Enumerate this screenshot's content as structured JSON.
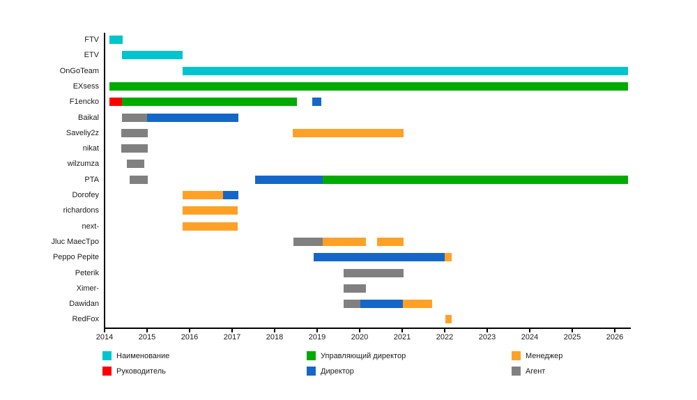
{
  "chart_data": {
    "type": "gantt",
    "title": "",
    "x_axis": {
      "min": 2014,
      "max": 2026.4,
      "ticks": [
        2014,
        2015,
        2016,
        2017,
        2018,
        2019,
        2020,
        2021,
        2022,
        2023,
        2024,
        2025,
        2026
      ]
    },
    "colors": {
      "name": "#00C5CD",
      "head": "#FF0000",
      "md": "#00AB00",
      "dir": "#1467C8",
      "manager": "#FFA126",
      "agent": "#808080"
    },
    "tasks": [
      {
        "name": "FTV",
        "segments": [
          {
            "role": "name",
            "start": 2014.11,
            "end": 2014.43
          }
        ]
      },
      {
        "name": "ETV",
        "segments": [
          {
            "role": "name",
            "start": 2014.41,
            "end": 2015.84
          }
        ]
      },
      {
        "name": "OnGoTeam",
        "segments": [
          {
            "role": "name",
            "start": 2015.84,
            "end": 2026.31
          }
        ]
      },
      {
        "name": "EXsess",
        "segments": [
          {
            "role": "md",
            "start": 2014.11,
            "end": 2026.31
          }
        ]
      },
      {
        "name": "F1encko",
        "segments": [
          {
            "role": "head",
            "start": 2014.11,
            "end": 2014.41
          },
          {
            "role": "md",
            "start": 2014.41,
            "end": 2018.52
          },
          {
            "role": "dir",
            "start": 2018.89,
            "end": 2019.1
          }
        ]
      },
      {
        "name": "Baikal",
        "segments": [
          {
            "role": "agent",
            "start": 2014.41,
            "end": 2015.0
          },
          {
            "role": "dir",
            "start": 2015.0,
            "end": 2017.15
          }
        ]
      },
      {
        "name": "Saveliy2z",
        "segments": [
          {
            "role": "agent",
            "start": 2014.39,
            "end": 2015.02
          },
          {
            "role": "manager",
            "start": 2018.43,
            "end": 2021.03
          }
        ]
      },
      {
        "name": "nikat",
        "segments": [
          {
            "role": "agent",
            "start": 2014.39,
            "end": 2015.02
          }
        ]
      },
      {
        "name": "wilzumza",
        "segments": [
          {
            "role": "agent",
            "start": 2014.52,
            "end": 2014.93
          }
        ]
      },
      {
        "name": "PTA",
        "segments": [
          {
            "role": "agent",
            "start": 2014.59,
            "end": 2015.02
          },
          {
            "role": "dir",
            "start": 2017.54,
            "end": 2019.13
          },
          {
            "role": "md",
            "start": 2019.13,
            "end": 2026.31
          }
        ]
      },
      {
        "name": "Dorofey",
        "segments": [
          {
            "role": "manager",
            "start": 2015.84,
            "end": 2016.79
          },
          {
            "role": "dir",
            "start": 2016.79,
            "end": 2017.15
          }
        ]
      },
      {
        "name": "richardons",
        "segments": [
          {
            "role": "manager",
            "start": 2015.84,
            "end": 2017.13
          }
        ]
      },
      {
        "name": "next-",
        "segments": [
          {
            "role": "manager",
            "start": 2015.84,
            "end": 2017.13
          }
        ]
      },
      {
        "name": "Jluc MaecTpo",
        "segments": [
          {
            "role": "agent",
            "start": 2018.44,
            "end": 2019.13
          },
          {
            "role": "manager",
            "start": 2019.13,
            "end": 2020.15
          },
          {
            "role": "manager",
            "start": 2020.41,
            "end": 2021.03
          }
        ]
      },
      {
        "name": "Peppo Pepite",
        "segments": [
          {
            "role": "dir",
            "start": 2018.92,
            "end": 2022.0
          },
          {
            "role": "manager",
            "start": 2022.0,
            "end": 2022.16
          }
        ]
      },
      {
        "name": "Peterik",
        "segments": [
          {
            "role": "agent",
            "start": 2019.62,
            "end": 2021.03
          }
        ]
      },
      {
        "name": "Ximer-",
        "segments": [
          {
            "role": "agent",
            "start": 2019.62,
            "end": 2020.15
          }
        ]
      },
      {
        "name": "Dawidan",
        "segments": [
          {
            "role": "agent",
            "start": 2019.62,
            "end": 2020.02
          },
          {
            "role": "dir",
            "start": 2020.02,
            "end": 2021.02
          },
          {
            "role": "manager",
            "start": 2021.02,
            "end": 2021.7
          }
        ]
      },
      {
        "name": "RedFox",
        "segments": [
          {
            "role": "manager",
            "start": 2022.02,
            "end": 2022.16
          }
        ]
      }
    ]
  },
  "legend": {
    "columns": [
      [
        {
          "label": "Наименование",
          "role": "name"
        },
        {
          "label": "Руководитель",
          "role": "head"
        }
      ],
      [
        {
          "label": "Управляющий директор",
          "role": "md"
        },
        {
          "label": "Директор",
          "role": "dir"
        }
      ],
      [
        {
          "label": "Менеджер",
          "role": "manager"
        },
        {
          "label": "Агент",
          "role": "agent"
        }
      ]
    ]
  }
}
